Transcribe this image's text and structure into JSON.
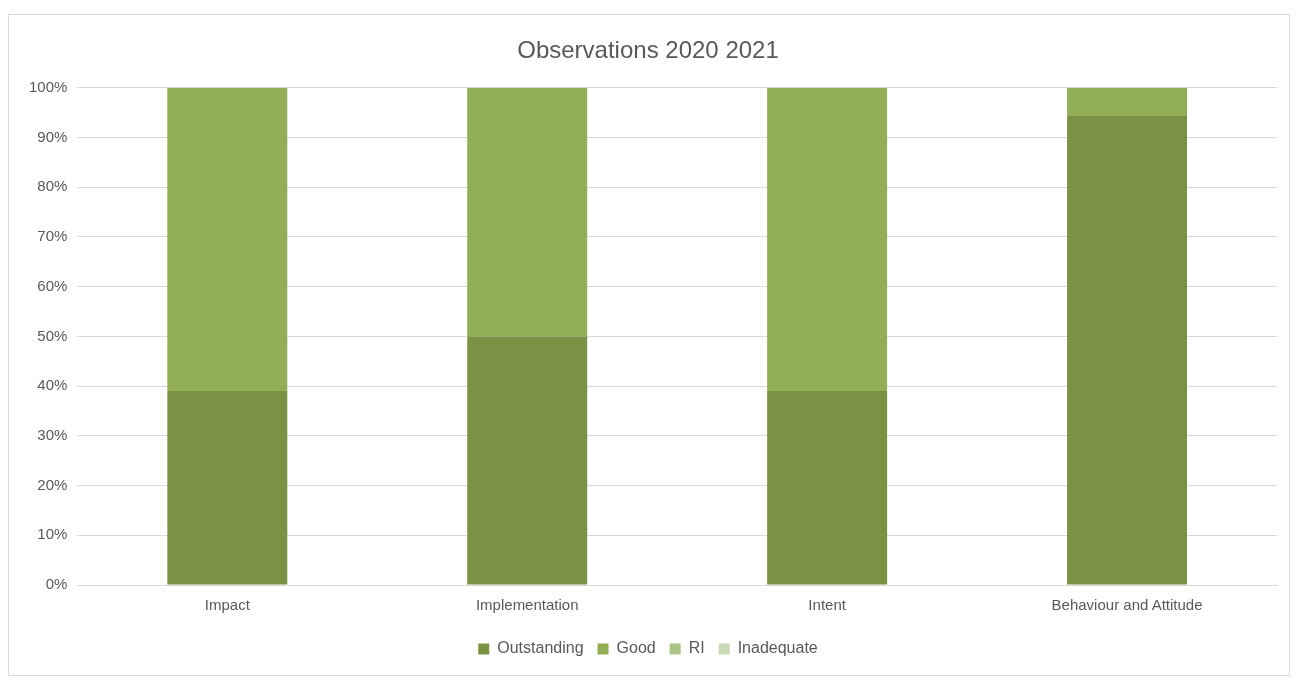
{
  "chart_data": {
    "type": "bar",
    "title": "Observations 2020 2021",
    "categories": [
      "Impact",
      "Implementation",
      "Intent",
      "Behaviour and Attitude"
    ],
    "stacked": true,
    "series": [
      {
        "name": "Outstanding",
        "color": "#7a9243",
        "values": [
          39,
          50,
          39,
          94.5
        ]
      },
      {
        "name": "Good",
        "color": "#92af56",
        "values": [
          61,
          50,
          61,
          5.5
        ]
      },
      {
        "name": "RI",
        "color": "#a9c484",
        "values": [
          0,
          0,
          0,
          0
        ]
      },
      {
        "name": "Inadequate",
        "color": "#c8dab3",
        "values": [
          0,
          0,
          0,
          0
        ]
      }
    ],
    "ylim": [
      0,
      100
    ],
    "yticks": [
      {
        "value": 0,
        "label": "0%"
      },
      {
        "value": 10,
        "label": "10%"
      },
      {
        "value": 20,
        "label": "20%"
      },
      {
        "value": 30,
        "label": "30%"
      },
      {
        "value": 40,
        "label": "40%"
      },
      {
        "value": 50,
        "label": "50%"
      },
      {
        "value": 60,
        "label": "60%"
      },
      {
        "value": 70,
        "label": "70%"
      },
      {
        "value": 80,
        "label": "80%"
      },
      {
        "value": 90,
        "label": "90%"
      },
      {
        "value": 100,
        "label": "100%"
      }
    ],
    "grid": "y",
    "legend": "bottom"
  }
}
